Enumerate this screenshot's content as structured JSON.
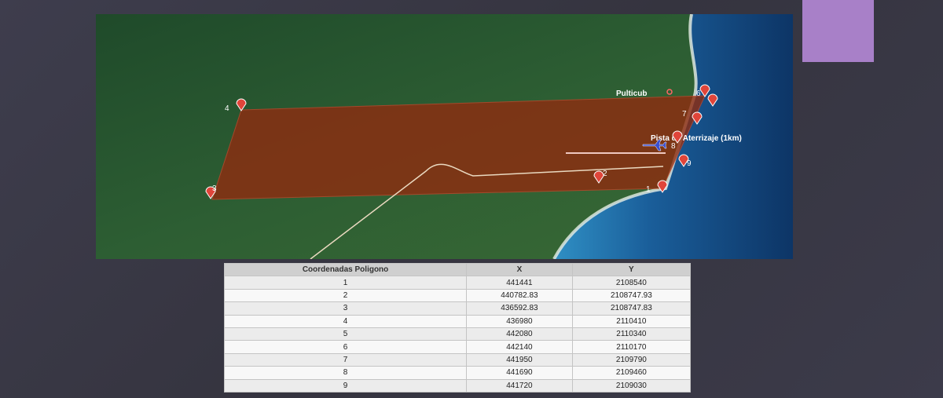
{
  "map": {
    "places": [
      "Pulticub",
      "Pista de Aterrizaje (1km)"
    ],
    "points": [
      "1",
      "2",
      "3",
      "4",
      "5",
      "6",
      "7",
      "8",
      "9"
    ]
  },
  "table": {
    "header": [
      "Coordenadas Poligono",
      "X",
      "Y"
    ],
    "rows": [
      [
        "1",
        "441441",
        "2108540"
      ],
      [
        "2",
        "440782.83",
        "2108747.93"
      ],
      [
        "3",
        "436592.83",
        "2108747.83"
      ],
      [
        "4",
        "436980",
        "2110410"
      ],
      [
        "5",
        "442080",
        "2110340"
      ],
      [
        "6",
        "442140",
        "2110170"
      ],
      [
        "7",
        "441950",
        "2109790"
      ],
      [
        "8",
        "441690",
        "2109460"
      ],
      [
        "9",
        "441720",
        "2109030"
      ]
    ]
  }
}
